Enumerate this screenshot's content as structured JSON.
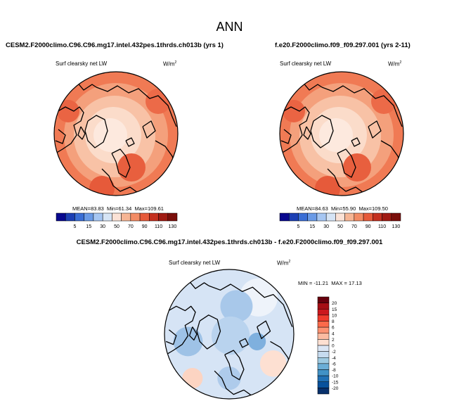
{
  "main_title": "ANN",
  "chart_data": [
    {
      "type": "heatmap",
      "projection": "north-polar-stereographic",
      "title": "CESM2.F2000climo.C96.C96.mg17.intel.432pes.1thrds.ch013b (yrs 1)",
      "variable": "Surf clearsky net LW",
      "units": "W/m",
      "units_exp": "2",
      "stats": {
        "mean_label": "MEAN=",
        "mean": "83.83",
        "min_label": "Min=",
        "min": "61.34",
        "max_label": "Max=",
        "max": "109.61"
      },
      "colorbar": {
        "ticks": [
          "5",
          "15",
          "30",
          "50",
          "70",
          "90",
          "110",
          "130"
        ],
        "colors": [
          "#08088e",
          "#1c3fb4",
          "#3a6ed5",
          "#6a9ae6",
          "#a6c6f2",
          "#d6e4f5",
          "#fbe2d6",
          "#f6b594",
          "#f28b64",
          "#e65a3a",
          "#c4301f",
          "#a01a12",
          "#7a0e0a"
        ]
      }
    },
    {
      "type": "heatmap",
      "projection": "north-polar-stereographic",
      "title": "f.e20.F2000climo.f09_f09.297.001 (yrs 2-11)",
      "variable": "Surf clearsky net LW",
      "units": "W/m",
      "units_exp": "2",
      "stats": {
        "mean_label": "MEAN=",
        "mean": "84.63",
        "min_label": "Min=",
        "min": "55.90",
        "max_label": "Max=",
        "max": "109.50"
      },
      "colorbar": {
        "ticks": [
          "5",
          "15",
          "30",
          "50",
          "70",
          "90",
          "110",
          "130"
        ],
        "colors": [
          "#08088e",
          "#1c3fb4",
          "#3a6ed5",
          "#6a9ae6",
          "#a6c6f2",
          "#d6e4f5",
          "#fbe2d6",
          "#f6b594",
          "#f28b64",
          "#e65a3a",
          "#c4301f",
          "#a01a12",
          "#7a0e0a"
        ]
      }
    },
    {
      "type": "heatmap",
      "projection": "north-polar-stereographic",
      "title": "CESM2.F2000climo.C96.C96.mg17.intel.432pes.1thrds.ch013b - f.e20.F2000climo.f09_f09.297.001",
      "variable": "Surf clearsky net LW",
      "units": "W/m",
      "units_exp": "2",
      "stats": {
        "min_label": "MIN =",
        "min": "-11.21",
        "max_label": "MAX =",
        "max": "17.13"
      },
      "colorbar": {
        "orientation": "vertical",
        "ticks": [
          "20",
          "15",
          "10",
          "8",
          "6",
          "4",
          "2",
          "0",
          "-2",
          "-4",
          "-6",
          "-8",
          "-10",
          "-15",
          "-20"
        ],
        "colors": [
          "#67000d",
          "#a50f15",
          "#cb181d",
          "#ef3b2c",
          "#fb6a4a",
          "#fc9272",
          "#fcbba1",
          "#fde0d2",
          "#dbe6f5",
          "#c6dbef",
          "#9ecae1",
          "#6baed6",
          "#4292c6",
          "#2171b5",
          "#08519c",
          "#08306b"
        ]
      }
    }
  ]
}
